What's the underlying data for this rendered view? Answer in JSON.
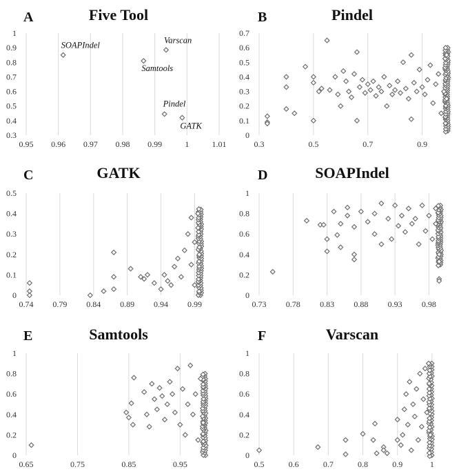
{
  "chart_data": [
    {
      "id": "A",
      "letter": "A",
      "title": "Five Tool",
      "type": "scatter",
      "xlim": [
        0.95,
        1.01
      ],
      "ylim": [
        0.3,
        1
      ],
      "x_ticks": [
        "0.95",
        "0.96",
        "0.97",
        "0.98",
        "0.99",
        "1",
        "1.01"
      ],
      "y_ticks": [
        "0.3",
        "0.4",
        "0.5",
        "0.6",
        "0.7",
        "0.8",
        "0.9",
        "1"
      ],
      "grid": "vertical",
      "points": [
        {
          "x": 0.9615,
          "y": 0.85,
          "label": "SOAPIndel"
        },
        {
          "x": 0.9865,
          "y": 0.81,
          "label": "Samtools"
        },
        {
          "x": 0.9935,
          "y": 0.885,
          "label": "Varscan"
        },
        {
          "x": 0.993,
          "y": 0.445,
          "label": "Pindel"
        },
        {
          "x": 0.9985,
          "y": 0.42,
          "label": "GATK"
        }
      ]
    },
    {
      "id": "B",
      "letter": "B",
      "title": "Pindel",
      "type": "scatter",
      "xlim": [
        0.3,
        1
      ],
      "ylim": [
        0,
        0.7
      ],
      "x_ticks": [
        "0.3",
        "0.5",
        "0.7",
        "0.9"
      ],
      "y_ticks": [
        "0",
        "0.1",
        "0.2",
        "0.3",
        "0.4",
        "0.5",
        "0.6",
        "0.7"
      ],
      "grid": "vertical",
      "points": [
        [
          0.33,
          0.13
        ],
        [
          0.33,
          0.09
        ],
        [
          0.33,
          0.08
        ],
        [
          0.4,
          0.4
        ],
        [
          0.4,
          0.33
        ],
        [
          0.4,
          0.18
        ],
        [
          0.43,
          0.15
        ],
        [
          0.47,
          0.47
        ],
        [
          0.5,
          0.4
        ],
        [
          0.5,
          0.36
        ],
        [
          0.5,
          0.1
        ],
        [
          0.52,
          0.3
        ],
        [
          0.53,
          0.32
        ],
        [
          0.55,
          0.65
        ],
        [
          0.56,
          0.31
        ],
        [
          0.58,
          0.4
        ],
        [
          0.59,
          0.28
        ],
        [
          0.6,
          0.2
        ],
        [
          0.61,
          0.44
        ],
        [
          0.62,
          0.37
        ],
        [
          0.63,
          0.3
        ],
        [
          0.64,
          0.26
        ],
        [
          0.65,
          0.42
        ],
        [
          0.66,
          0.57
        ],
        [
          0.66,
          0.1
        ],
        [
          0.67,
          0.33
        ],
        [
          0.68,
          0.38
        ],
        [
          0.69,
          0.29
        ],
        [
          0.7,
          0.35
        ],
        [
          0.71,
          0.31
        ],
        [
          0.72,
          0.37
        ],
        [
          0.73,
          0.27
        ],
        [
          0.74,
          0.33
        ],
        [
          0.75,
          0.3
        ],
        [
          0.76,
          0.4
        ],
        [
          0.77,
          0.2
        ],
        [
          0.78,
          0.34
        ],
        [
          0.79,
          0.28
        ],
        [
          0.8,
          0.31
        ],
        [
          0.81,
          0.37
        ],
        [
          0.82,
          0.29
        ],
        [
          0.83,
          0.5
        ],
        [
          0.84,
          0.32
        ],
        [
          0.85,
          0.25
        ],
        [
          0.86,
          0.55
        ],
        [
          0.86,
          0.11
        ],
        [
          0.87,
          0.36
        ],
        [
          0.88,
          0.3
        ],
        [
          0.89,
          0.45
        ],
        [
          0.9,
          0.33
        ],
        [
          0.91,
          0.28
        ],
        [
          0.92,
          0.38
        ],
        [
          0.93,
          0.48
        ],
        [
          0.94,
          0.22
        ],
        [
          0.95,
          0.35
        ],
        [
          0.96,
          0.42
        ],
        [
          0.97,
          0.15
        ],
        [
          0.98,
          0.3
        ],
        [
          0.99,
          0.55
        ],
        [
          0.99,
          0.25
        ]
      ],
      "dense_band": {
        "x": 0.996,
        "y_min": 0.03,
        "y_max": 0.6,
        "count": 40
      }
    },
    {
      "id": "C",
      "letter": "C",
      "title": "GATK",
      "type": "scatter",
      "xlim": [
        0.74,
        1.01
      ],
      "ylim": [
        0,
        0.5
      ],
      "x_ticks": [
        "0.74",
        "0.79",
        "0.84",
        "0.89",
        "0.94",
        "0.99"
      ],
      "y_ticks": [
        "0",
        "0.1",
        "0.2",
        "0.3",
        "0.4",
        "0.5"
      ],
      "grid": "vertical",
      "points": [
        [
          0.745,
          0.06
        ],
        [
          0.745,
          0.02
        ],
        [
          0.745,
          0.0
        ],
        [
          0.835,
          0.0
        ],
        [
          0.855,
          0.02
        ],
        [
          0.87,
          0.21
        ],
        [
          0.87,
          0.09
        ],
        [
          0.87,
          0.03
        ],
        [
          0.895,
          0.13
        ],
        [
          0.91,
          0.09
        ],
        [
          0.915,
          0.08
        ],
        [
          0.92,
          0.1
        ],
        [
          0.93,
          0.06
        ],
        [
          0.94,
          0.03
        ],
        [
          0.945,
          0.1
        ],
        [
          0.95,
          0.07
        ],
        [
          0.955,
          0.05
        ],
        [
          0.96,
          0.14
        ],
        [
          0.965,
          0.18
        ],
        [
          0.97,
          0.09
        ],
        [
          0.975,
          0.22
        ],
        [
          0.98,
          0.3
        ],
        [
          0.985,
          0.15
        ],
        [
          0.985,
          0.38
        ],
        [
          0.99,
          0.26
        ],
        [
          0.99,
          0.05
        ],
        [
          0.995,
          0.4
        ],
        [
          0.995,
          0.33
        ]
      ],
      "dense_band": {
        "x": 1.0,
        "y_min": 0.0,
        "y_max": 0.42,
        "count": 36
      }
    },
    {
      "id": "D",
      "letter": "D",
      "title": "SOAPIndel",
      "type": "scatter",
      "xlim": [
        0.73,
        1.01
      ],
      "ylim": [
        0,
        1
      ],
      "x_ticks": [
        "0.73",
        "0.78",
        "0.83",
        "0.88",
        "0.93",
        "0.98"
      ],
      "y_ticks": [
        "0",
        "0.2",
        "0.4",
        "0.6",
        "0.8",
        "1"
      ],
      "grid": "vertical",
      "points": [
        [
          0.75,
          0.23
        ],
        [
          0.8,
          0.73
        ],
        [
          0.82,
          0.69
        ],
        [
          0.825,
          0.69
        ],
        [
          0.83,
          0.55
        ],
        [
          0.83,
          0.43
        ],
        [
          0.84,
          0.82
        ],
        [
          0.845,
          0.59
        ],
        [
          0.85,
          0.47
        ],
        [
          0.85,
          0.7
        ],
        [
          0.86,
          0.78
        ],
        [
          0.86,
          0.86
        ],
        [
          0.87,
          0.67
        ],
        [
          0.87,
          0.4
        ],
        [
          0.87,
          0.35
        ],
        [
          0.88,
          0.82
        ],
        [
          0.89,
          0.72
        ],
        [
          0.9,
          0.8
        ],
        [
          0.9,
          0.6
        ],
        [
          0.91,
          0.9
        ],
        [
          0.91,
          0.5
        ],
        [
          0.92,
          0.75
        ],
        [
          0.925,
          0.55
        ],
        [
          0.93,
          0.88
        ],
        [
          0.935,
          0.68
        ],
        [
          0.94,
          0.78
        ],
        [
          0.945,
          0.62
        ],
        [
          0.95,
          0.85
        ],
        [
          0.955,
          0.7
        ],
        [
          0.96,
          0.75
        ],
        [
          0.965,
          0.5
        ],
        [
          0.97,
          0.88
        ],
        [
          0.975,
          0.63
        ],
        [
          0.98,
          0.78
        ],
        [
          0.985,
          0.55
        ],
        [
          0.99,
          0.85
        ],
        [
          0.99,
          0.7
        ],
        [
          0.995,
          0.4
        ],
        [
          0.995,
          0.33
        ],
        [
          0.995,
          0.16
        ],
        [
          0.995,
          0.14
        ]
      ],
      "dense_band": {
        "x": 0.998,
        "y_min": 0.3,
        "y_max": 0.88,
        "count": 30
      }
    },
    {
      "id": "E",
      "letter": "E",
      "title": "Samtools",
      "type": "scatter",
      "xlim": [
        0.65,
        1.01
      ],
      "ylim": [
        0,
        1
      ],
      "x_ticks": [
        "0.65",
        "0.75",
        "0.85",
        "0.95"
      ],
      "y_ticks": [
        "0",
        "0.2",
        "0.4",
        "0.6",
        "0.8",
        "1"
      ],
      "grid": "vertical",
      "points": [
        [
          0.66,
          0.1
        ],
        [
          0.845,
          0.42
        ],
        [
          0.85,
          0.37
        ],
        [
          0.855,
          0.51
        ],
        [
          0.858,
          0.3
        ],
        [
          0.86,
          0.76
        ],
        [
          0.88,
          0.62
        ],
        [
          0.885,
          0.4
        ],
        [
          0.89,
          0.28
        ],
        [
          0.895,
          0.7
        ],
        [
          0.9,
          0.55
        ],
        [
          0.905,
          0.45
        ],
        [
          0.91,
          0.66
        ],
        [
          0.915,
          0.58
        ],
        [
          0.92,
          0.35
        ],
        [
          0.925,
          0.5
        ],
        [
          0.93,
          0.72
        ],
        [
          0.935,
          0.6
        ],
        [
          0.94,
          0.42
        ],
        [
          0.945,
          0.85
        ],
        [
          0.95,
          0.3
        ],
        [
          0.955,
          0.65
        ],
        [
          0.96,
          0.2
        ],
        [
          0.965,
          0.5
        ],
        [
          0.97,
          0.88
        ],
        [
          0.975,
          0.4
        ],
        [
          0.98,
          0.6
        ],
        [
          0.985,
          0.15
        ],
        [
          0.99,
          0.75
        ],
        [
          0.995,
          0.32
        ]
      ],
      "dense_band": {
        "x": 1.0,
        "y_min": 0.0,
        "y_max": 0.8,
        "count": 34
      }
    },
    {
      "id": "F",
      "letter": "F",
      "title": "Varscan",
      "type": "scatter",
      "xlim": [
        0.5,
        1.05
      ],
      "ylim": [
        0,
        1
      ],
      "x_ticks": [
        "0.5",
        "0.6",
        "0.7",
        "0.8",
        "0.9",
        "1"
      ],
      "y_ticks": [
        "0",
        "0.2",
        "0.4",
        "0.6",
        "0.8",
        "1"
      ],
      "grid": "vertical",
      "points": [
        [
          0.5,
          0.05
        ],
        [
          0.67,
          0.08
        ],
        [
          0.75,
          0.15
        ],
        [
          0.75,
          0.01
        ],
        [
          0.8,
          0.21
        ],
        [
          0.83,
          0.15
        ],
        [
          0.835,
          0.31
        ],
        [
          0.84,
          0.02
        ],
        [
          0.86,
          0.08
        ],
        [
          0.86,
          0.05
        ],
        [
          0.87,
          0.02
        ],
        [
          0.9,
          0.15
        ],
        [
          0.9,
          0.35
        ],
        [
          0.91,
          0.1
        ],
        [
          0.915,
          0.2
        ],
        [
          0.92,
          0.45
        ],
        [
          0.925,
          0.6
        ],
        [
          0.93,
          0.3
        ],
        [
          0.935,
          0.72
        ],
        [
          0.94,
          0.05
        ],
        [
          0.945,
          0.5
        ],
        [
          0.95,
          0.38
        ],
        [
          0.955,
          0.65
        ],
        [
          0.96,
          0.15
        ],
        [
          0.965,
          0.8
        ],
        [
          0.97,
          0.28
        ],
        [
          0.975,
          0.55
        ],
        [
          0.98,
          0.85
        ],
        [
          0.985,
          0.42
        ],
        [
          0.99,
          0.9
        ],
        [
          0.995,
          0.2
        ]
      ],
      "dense_band": {
        "x": 1.0,
        "y_min": 0.0,
        "y_max": 0.9,
        "count": 30
      }
    }
  ]
}
